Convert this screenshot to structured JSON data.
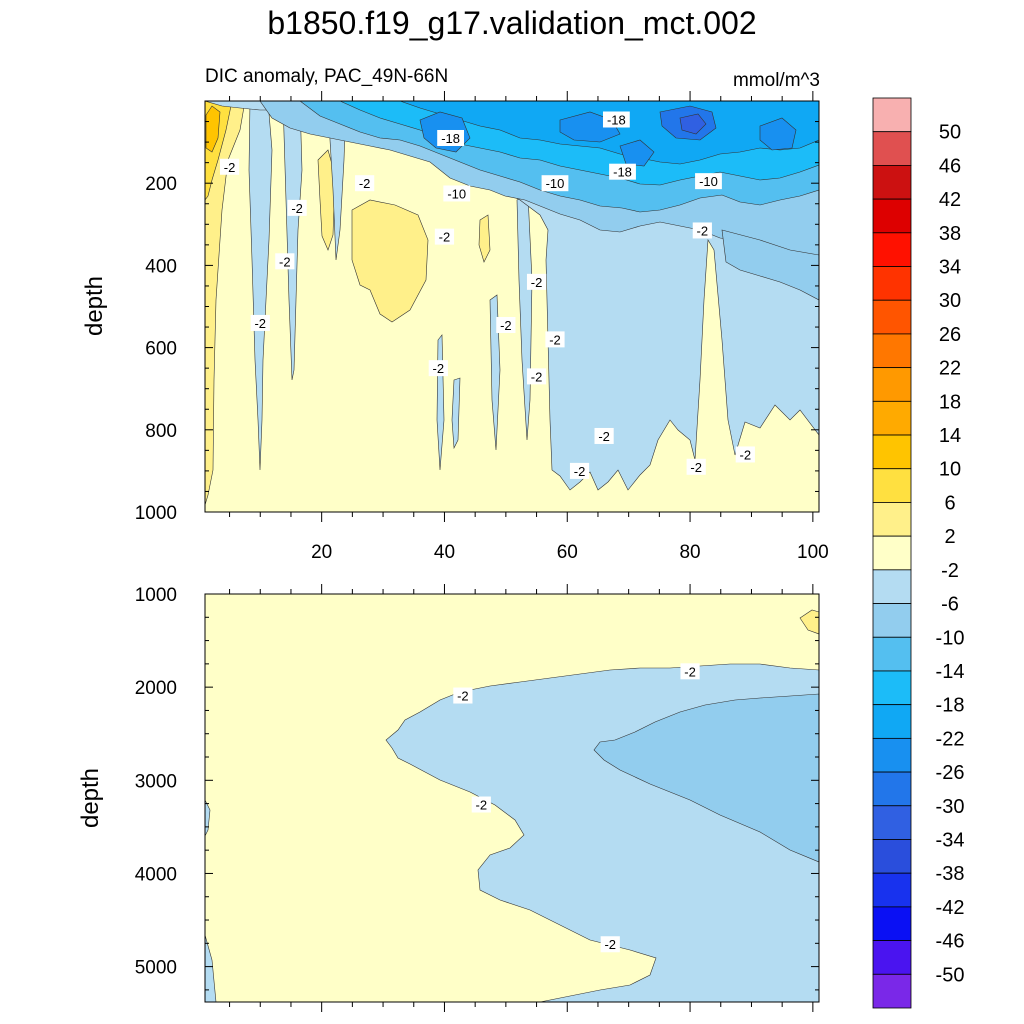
{
  "title": "b1850.f19_g17.validation_mct.002",
  "chart_data": {
    "type": "contour",
    "title": "b1850.f19_g17.validation_mct.002",
    "subtitle_left": "DIC anomaly, PAC_49N-66N",
    "units": "mmol/m^3",
    "panels": [
      {
        "name": "upper",
        "ylabel": "depth",
        "xlim": [
          1,
          101
        ],
        "ylim": [
          1000,
          0
        ],
        "x_ticks": [
          20,
          40,
          60,
          80,
          100
        ],
        "x_tick_labels": [
          "20",
          "40",
          "60",
          "80",
          "100"
        ],
        "y_ticks": [
          200,
          400,
          600,
          800,
          1000
        ],
        "y_tick_labels": [
          "200",
          "400",
          "600",
          "800",
          "1000"
        ],
        "contour_labels": [
          {
            "text": "-2",
            "x": 5,
            "y": 160
          },
          {
            "text": "-2",
            "x": 16,
            "y": 260
          },
          {
            "text": "-2",
            "x": 14,
            "y": 390
          },
          {
            "text": "-2",
            "x": 10,
            "y": 540
          },
          {
            "text": "-2",
            "x": 27,
            "y": 200
          },
          {
            "text": "-18",
            "x": 41,
            "y": 90
          },
          {
            "text": "-10",
            "x": 42,
            "y": 225
          },
          {
            "text": "-2",
            "x": 40,
            "y": 330
          },
          {
            "text": "-2",
            "x": 39,
            "y": 650
          },
          {
            "text": "-2",
            "x": 55,
            "y": 440
          },
          {
            "text": "-2",
            "x": 50,
            "y": 545
          },
          {
            "text": "-2",
            "x": 58,
            "y": 580
          },
          {
            "text": "-10",
            "x": 58,
            "y": 200
          },
          {
            "text": "-2",
            "x": 55,
            "y": 670
          },
          {
            "text": "-18",
            "x": 68,
            "y": 45
          },
          {
            "text": "-18",
            "x": 69,
            "y": 172
          },
          {
            "text": "-2",
            "x": 66,
            "y": 815
          },
          {
            "text": "-2",
            "x": 62,
            "y": 900
          },
          {
            "text": "-10",
            "x": 83,
            "y": 195
          },
          {
            "text": "-2",
            "x": 82,
            "y": 315
          },
          {
            "text": "-2",
            "x": 81,
            "y": 890
          },
          {
            "text": "-2",
            "x": 89,
            "y": 860
          }
        ]
      },
      {
        "name": "lower",
        "ylabel": "depth",
        "xlim": [
          1,
          101
        ],
        "ylim": [
          5380,
          1000
        ],
        "y_ticks": [
          1000,
          2000,
          3000,
          4000,
          5000
        ],
        "y_tick_labels": [
          "1000",
          "2000",
          "3000",
          "4000",
          "5000"
        ],
        "contour_labels": [
          {
            "text": "-2",
            "x": 80,
            "y": 1830
          },
          {
            "text": "-2",
            "x": 43,
            "y": 2090
          },
          {
            "text": "-2",
            "x": 46,
            "y": 3260
          },
          {
            "text": "-2",
            "x": 67,
            "y": 4760
          }
        ]
      }
    ],
    "colorbar": {
      "levels": [
        "50",
        "46",
        "42",
        "38",
        "34",
        "30",
        "26",
        "22",
        "18",
        "14",
        "10",
        "6",
        "2",
        "-2",
        "-6",
        "-10",
        "-14",
        "-18",
        "-22",
        "-26",
        "-30",
        "-34",
        "-38",
        "-42",
        "-46",
        "-50"
      ],
      "colors": [
        "#f8b0b0",
        "#e05050",
        "#cc1111",
        "#dd0000",
        "#ff1100",
        "#ff3300",
        "#ff5500",
        "#ff7700",
        "#ff9900",
        "#ffaa00",
        "#ffc400",
        "#ffe040",
        "#fff08a",
        "#ffffc8",
        "#b4dcf2",
        "#92cdee",
        "#54bff0",
        "#1cbcf8",
        "#10a8f4",
        "#1890f0",
        "#2276ea",
        "#3060e2",
        "#2a4edc",
        "#1832ee",
        "#0a10f4",
        "#4a14f0",
        "#7a28e8"
      ]
    }
  }
}
